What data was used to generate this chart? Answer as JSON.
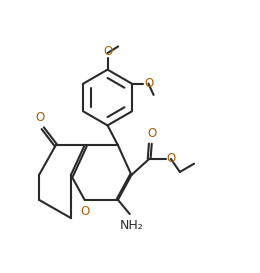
{
  "bg_color": "#ffffff",
  "line_color": "#2a2a2a",
  "o_color": "#b06000",
  "lw": 1.5,
  "do": 0.06,
  "figsize": [
    2.6,
    2.73
  ],
  "dpi": 100,
  "xlim": [
    -0.5,
    10.5
  ],
  "ylim": [
    0.5,
    11.5
  ]
}
